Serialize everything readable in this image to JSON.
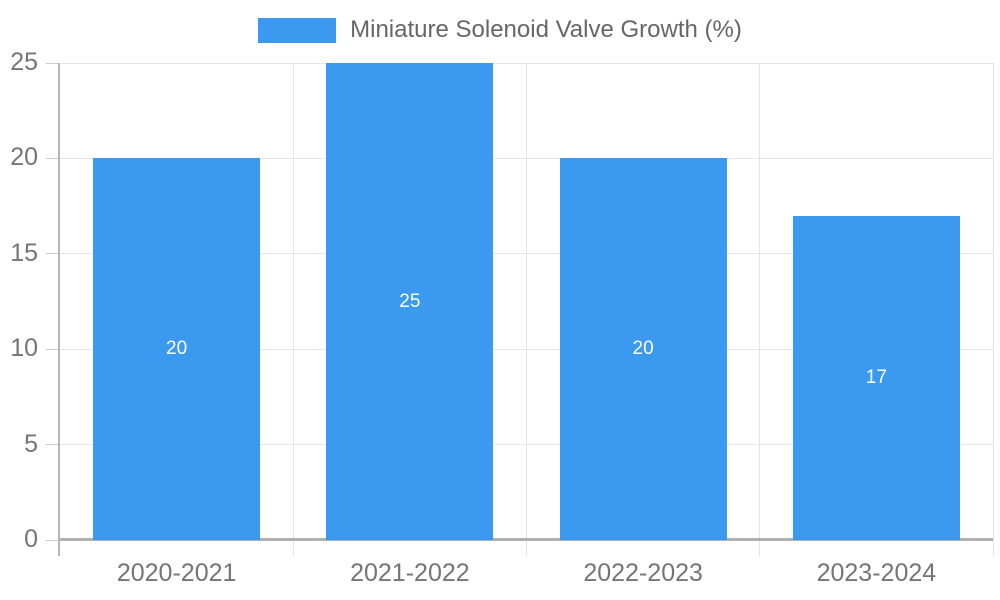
{
  "chart_data": {
    "type": "bar",
    "series_name": "Miniature Solenoid Valve Growth (%)",
    "categories": [
      "2020-2021",
      "2021-2022",
      "2022-2023",
      "2023-2024"
    ],
    "values": [
      20,
      25,
      20,
      17
    ],
    "value_labels": [
      "20",
      "25",
      "20",
      "17"
    ],
    "ylim": [
      0,
      25
    ],
    "yticks": [
      0,
      5,
      10,
      15,
      20,
      25
    ],
    "grid": true,
    "legend_position": "top-center",
    "bar_color": "#3b99f0",
    "value_label_color": "#ffffff",
    "axis_text_color": "#757575",
    "legend_text_color": "#666666",
    "gridline_color": "#e6e6e6",
    "axis_line_color": "#b0b0b0"
  }
}
